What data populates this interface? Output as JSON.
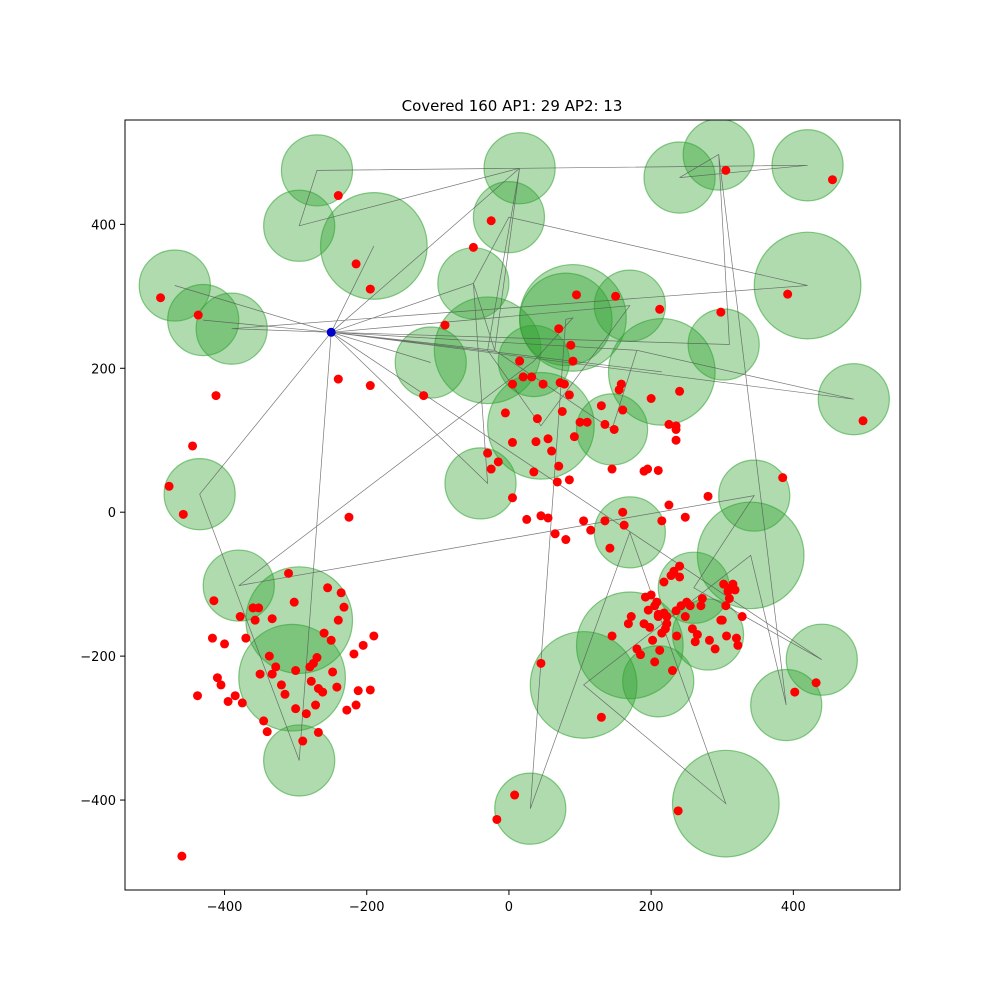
{
  "chart_data": {
    "type": "scatter",
    "title": "Covered 160 AP1: 29 AP2: 13",
    "xlabel": "",
    "ylabel": "",
    "xlim": [
      -540,
      550
    ],
    "ylim": [
      -525,
      545
    ],
    "x_ticks": [
      -400,
      -200,
      0,
      200,
      400
    ],
    "y_ticks": [
      -400,
      -200,
      0,
      200,
      400
    ],
    "grid": false,
    "colors": {
      "points": "#ff0000",
      "center": "#0000cc",
      "coverage_fill": "#2ca02c",
      "coverage_edge": "#2ca02c",
      "path": "#555555"
    },
    "center_point": {
      "x": -250,
      "y": 250
    },
    "points": [
      [
        -240,
        440
      ],
      [
        -215,
        345
      ],
      [
        -195,
        310
      ],
      [
        -490,
        298
      ],
      [
        -437,
        274
      ],
      [
        -412,
        162
      ],
      [
        -445,
        92
      ],
      [
        -478,
        36
      ],
      [
        -458,
        -3
      ],
      [
        -240,
        185
      ],
      [
        -195,
        176
      ],
      [
        -225,
        -7
      ],
      [
        -120,
        162
      ],
      [
        -90,
        260
      ],
      [
        -50,
        368
      ],
      [
        -25,
        405
      ],
      [
        -30,
        82
      ],
      [
        -25,
        60
      ],
      [
        -15,
        70
      ],
      [
        -5,
        138
      ],
      [
        5,
        20
      ],
      [
        5,
        97
      ],
      [
        5,
        178
      ],
      [
        15,
        210
      ],
      [
        20,
        188
      ],
      [
        25,
        -10
      ],
      [
        32,
        188
      ],
      [
        35,
        56
      ],
      [
        38,
        98
      ],
      [
        40,
        130
      ],
      [
        45,
        -5
      ],
      [
        48,
        178
      ],
      [
        55,
        102
      ],
      [
        55,
        -8
      ],
      [
        60,
        85
      ],
      [
        65,
        -30
      ],
      [
        68,
        42
      ],
      [
        70,
        64
      ],
      [
        72,
        180
      ],
      [
        75,
        140
      ],
      [
        78,
        178
      ],
      [
        80,
        -38
      ],
      [
        85,
        163
      ],
      [
        85,
        45
      ],
      [
        87,
        232
      ],
      [
        90,
        210
      ],
      [
        92,
        105
      ],
      [
        95,
        302
      ],
      [
        70,
        255
      ],
      [
        100,
        125
      ],
      [
        105,
        -12
      ],
      [
        110,
        125
      ],
      [
        115,
        -25
      ],
      [
        130,
        148
      ],
      [
        135,
        -12
      ],
      [
        135,
        122
      ],
      [
        142,
        -50
      ],
      [
        145,
        60
      ],
      [
        148,
        115
      ],
      [
        150,
        300
      ],
      [
        155,
        170
      ],
      [
        158,
        178
      ],
      [
        160,
        0
      ],
      [
        162,
        -18
      ],
      [
        160,
        142
      ],
      [
        195,
        60
      ],
      [
        190,
        57
      ],
      [
        200,
        158
      ],
      [
        210,
        58
      ],
      [
        212,
        282
      ],
      [
        215,
        -12
      ],
      [
        225,
        122
      ],
      [
        225,
        10
      ],
      [
        235,
        120
      ],
      [
        235,
        115
      ],
      [
        235,
        100
      ],
      [
        240,
        168
      ],
      [
        248,
        -7
      ],
      [
        280,
        22
      ],
      [
        298,
        278
      ],
      [
        392,
        303
      ],
      [
        385,
        48
      ],
      [
        455,
        462
      ],
      [
        498,
        127
      ],
      [
        305,
        475
      ],
      [
        -415,
        -123
      ],
      [
        -417,
        -175
      ],
      [
        -400,
        -183
      ],
      [
        -378,
        -145
      ],
      [
        -360,
        -133
      ],
      [
        -352,
        -133
      ],
      [
        -350,
        -225
      ],
      [
        -345,
        -290
      ],
      [
        -340,
        -305
      ],
      [
        -337,
        -200
      ],
      [
        -333,
        -148
      ],
      [
        -333,
        -225
      ],
      [
        -328,
        -215
      ],
      [
        -320,
        -240
      ],
      [
        -315,
        -253
      ],
      [
        -310,
        -85
      ],
      [
        -302,
        -125
      ],
      [
        -300,
        -273
      ],
      [
        -300,
        -220
      ],
      [
        -290,
        -318
      ],
      [
        -285,
        -280
      ],
      [
        -280,
        -215
      ],
      [
        -278,
        -235
      ],
      [
        -275,
        -210
      ],
      [
        -272,
        -268
      ],
      [
        -270,
        -202
      ],
      [
        -268,
        -245
      ],
      [
        -262,
        -250
      ],
      [
        -260,
        -168
      ],
      [
        -255,
        -105
      ],
      [
        -250,
        -178
      ],
      [
        -242,
        -243
      ],
      [
        -240,
        -150
      ],
      [
        -236,
        -112
      ],
      [
        -232,
        -132
      ],
      [
        -228,
        -275
      ],
      [
        -218,
        -197
      ],
      [
        -215,
        -268
      ],
      [
        -212,
        -248
      ],
      [
        -205,
        -185
      ],
      [
        -195,
        -247
      ],
      [
        -190,
        -172
      ],
      [
        -268,
        -306
      ],
      [
        -357,
        -150
      ],
      [
        -370,
        -175
      ],
      [
        -395,
        -263
      ],
      [
        -405,
        -240
      ],
      [
        -410,
        -230
      ],
      [
        -438,
        -255
      ],
      [
        -385,
        -255
      ],
      [
        -375,
        -265
      ],
      [
        -460,
        -478
      ],
      [
        45,
        -210
      ],
      [
        130,
        -285
      ],
      [
        145,
        -172
      ],
      [
        168,
        -155
      ],
      [
        172,
        -145
      ],
      [
        180,
        -190
      ],
      [
        185,
        -198
      ],
      [
        190,
        -155
      ],
      [
        192,
        -118
      ],
      [
        196,
        -136
      ],
      [
        198,
        -160
      ],
      [
        200,
        -115
      ],
      [
        202,
        -178
      ],
      [
        205,
        -130
      ],
      [
        205,
        -208
      ],
      [
        208,
        -125
      ],
      [
        210,
        -145
      ],
      [
        212,
        -192
      ],
      [
        215,
        -168
      ],
      [
        218,
        -140
      ],
      [
        218,
        -97
      ],
      [
        220,
        -162
      ],
      [
        222,
        -155
      ],
      [
        228,
        -88
      ],
      [
        230,
        -220
      ],
      [
        232,
        -82
      ],
      [
        235,
        -137
      ],
      [
        236,
        -172
      ],
      [
        240,
        -90
      ],
      [
        240,
        -75
      ],
      [
        242,
        -130
      ],
      [
        248,
        -145
      ],
      [
        250,
        -125
      ],
      [
        255,
        -130
      ],
      [
        258,
        -162
      ],
      [
        262,
        -180
      ],
      [
        265,
        -170
      ],
      [
        270,
        -130
      ],
      [
        272,
        -120
      ],
      [
        282,
        -178
      ],
      [
        290,
        -190
      ],
      [
        298,
        -150
      ],
      [
        302,
        -100
      ],
      [
        305,
        -130
      ],
      [
        306,
        -172
      ],
      [
        308,
        -110
      ],
      [
        310,
        -120
      ],
      [
        312,
        -105
      ],
      [
        315,
        -100
      ],
      [
        318,
        -108
      ],
      [
        320,
        -175
      ],
      [
        322,
        -185
      ],
      [
        328,
        -145
      ],
      [
        402,
        -250
      ],
      [
        432,
        -237
      ],
      [
        238,
        -415
      ],
      [
        8,
        -393
      ],
      [
        -17,
        -427
      ],
      [
        -248,
        -222
      ],
      [
        210,
        -142
      ],
      [
        222,
        -145
      ],
      [
        300,
        -150
      ]
    ],
    "circles": [
      [
        -270,
        475,
        50
      ],
      [
        -295,
        398,
        50
      ],
      [
        -190,
        370,
        75
      ],
      [
        -470,
        315,
        50
      ],
      [
        -430,
        267,
        50
      ],
      [
        -390,
        255,
        50
      ],
      [
        15,
        478,
        50
      ],
      [
        0,
        410,
        50
      ],
      [
        -50,
        318,
        50
      ],
      [
        -110,
        208,
        50
      ],
      [
        -30,
        225,
        75
      ],
      [
        35,
        210,
        50
      ],
      [
        90,
        270,
        75
      ],
      [
        170,
        287,
        50
      ],
      [
        80,
        268,
        65
      ],
      [
        45,
        120,
        75
      ],
      [
        145,
        115,
        50
      ],
      [
        215,
        195,
        75
      ],
      [
        240,
        465,
        50
      ],
      [
        295,
        497,
        50
      ],
      [
        420,
        482,
        50
      ],
      [
        420,
        315,
        75
      ],
      [
        302,
        233,
        50
      ],
      [
        485,
        157,
        50
      ],
      [
        -435,
        25,
        50
      ],
      [
        -40,
        40,
        50
      ],
      [
        170,
        -28,
        50
      ],
      [
        345,
        23,
        50
      ],
      [
        340,
        -60,
        75
      ],
      [
        260,
        -105,
        50
      ],
      [
        -380,
        -102,
        50
      ],
      [
        -295,
        -150,
        75
      ],
      [
        -305,
        -230,
        75
      ],
      [
        -295,
        -345,
        50
      ],
      [
        170,
        -185,
        75
      ],
      [
        210,
        -235,
        50
      ],
      [
        280,
        -170,
        50
      ],
      [
        105,
        -240,
        75
      ],
      [
        440,
        -205,
        50
      ],
      [
        390,
        -268,
        50
      ],
      [
        30,
        -412,
        50
      ],
      [
        305,
        -405,
        75
      ]
    ],
    "path": [
      [
        -250,
        250
      ],
      [
        -190,
        370
      ],
      [
        -250,
        250
      ],
      [
        -430,
        267
      ],
      [
        -250,
        250
      ],
      [
        -470,
        315
      ],
      [
        -250,
        250
      ],
      [
        15,
        478
      ],
      [
        -295,
        398
      ],
      [
        -270,
        475
      ],
      [
        420,
        482
      ],
      [
        240,
        465
      ],
      [
        295,
        497
      ],
      [
        310,
        233
      ],
      [
        -250,
        250
      ],
      [
        180,
        225
      ],
      [
        -250,
        250
      ],
      [
        215,
        195
      ],
      [
        -250,
        250
      ],
      [
        -20,
        225
      ],
      [
        -50,
        318
      ],
      [
        0,
        410
      ],
      [
        420,
        315
      ],
      [
        -390,
        255
      ],
      [
        -250,
        250
      ],
      [
        -30,
        40
      ],
      [
        -50,
        318
      ],
      [
        -250,
        250
      ],
      [
        -110,
        208
      ],
      [
        -250,
        250
      ],
      [
        485,
        157
      ],
      [
        180,
        225
      ],
      [
        145,
        115
      ],
      [
        -20,
        225
      ],
      [
        15,
        478
      ],
      [
        -30,
        225
      ],
      [
        45,
        120
      ],
      [
        170,
        287
      ],
      [
        -250,
        250
      ],
      [
        -435,
        25
      ],
      [
        -295,
        -345
      ],
      [
        -250,
        250
      ],
      [
        440,
        -205
      ],
      [
        260,
        -105
      ],
      [
        345,
        23
      ],
      [
        -380,
        -102
      ],
      [
        35,
        210
      ],
      [
        90,
        270
      ],
      [
        80,
        268
      ],
      [
        30,
        -412
      ],
      [
        170,
        -28
      ],
      [
        305,
        -405
      ],
      [
        105,
        -240
      ],
      [
        340,
        -60
      ],
      [
        390,
        -268
      ],
      [
        295,
        497
      ]
    ]
  }
}
